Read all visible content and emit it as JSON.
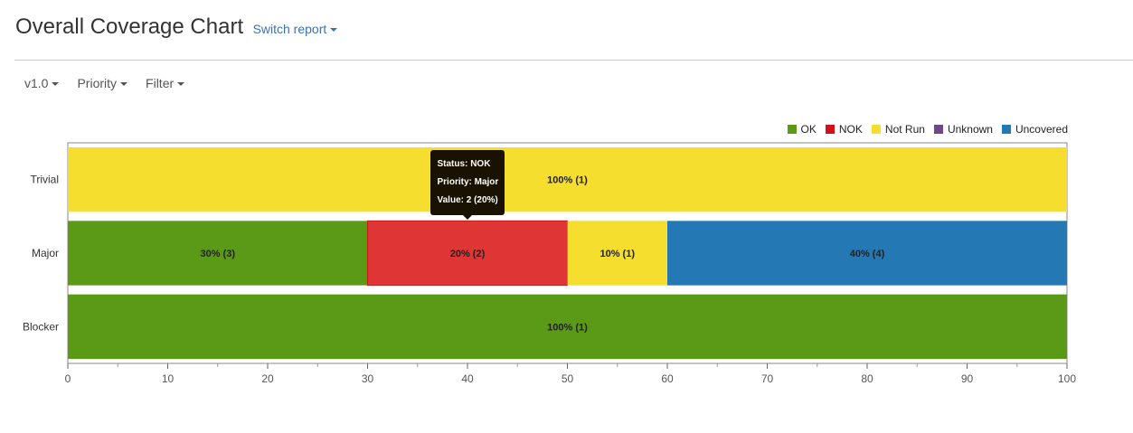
{
  "header": {
    "title": "Overall Coverage Chart",
    "switch_report": "Switch report"
  },
  "toolbar": {
    "version": "v1.0",
    "priority": "Priority",
    "filter": "Filter"
  },
  "chart_data": {
    "type": "bar",
    "orientation": "horizontal",
    "stacked": true,
    "categories": [
      "Trivial",
      "Major",
      "Blocker"
    ],
    "series": [
      {
        "name": "OK",
        "color": "#5a9a16",
        "values": [
          0,
          30,
          100
        ],
        "labels": [
          "",
          "30% (3)",
          "100% (1)"
        ]
      },
      {
        "name": "NOK",
        "color": "#d0101b",
        "values": [
          0,
          20,
          0
        ],
        "labels": [
          "",
          "20% (2)",
          ""
        ]
      },
      {
        "name": "Not Run",
        "color": "#f5de2e",
        "values": [
          100,
          10,
          0
        ],
        "labels": [
          "100% (1)",
          "10% (1)",
          ""
        ]
      },
      {
        "name": "Unknown",
        "color": "#6b4a8a",
        "values": [
          0,
          0,
          0
        ],
        "labels": [
          "",
          "",
          ""
        ]
      },
      {
        "name": "Uncovered",
        "color": "#2479b5",
        "values": [
          0,
          40,
          0
        ],
        "labels": [
          "",
          "40% (4)",
          ""
        ]
      }
    ],
    "xlim": [
      0,
      100
    ],
    "xticks": [
      "0",
      "10",
      "20",
      "30",
      "40",
      "50",
      "60",
      "70",
      "80",
      "90",
      "100"
    ],
    "legend": "top-right",
    "highlight": {
      "category": "Major",
      "series": "NOK",
      "color": "#e03535"
    },
    "tooltip": {
      "status_key": "Status:",
      "status_value": "NOK",
      "priority_key": "Priority:",
      "priority_value": "Major",
      "value_key": "Value:",
      "value_value": "2 (20%)"
    }
  }
}
